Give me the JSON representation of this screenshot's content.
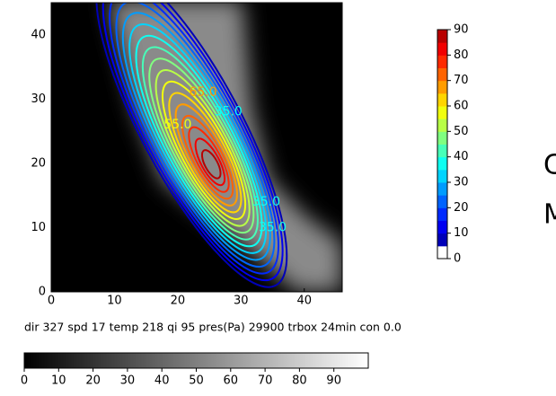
{
  "chart_data": {
    "type": "contour",
    "xlim": [
      0,
      46
    ],
    "ylim": [
      0,
      45
    ],
    "xticks": [
      0,
      10,
      20,
      30,
      40
    ],
    "yticks": [
      0,
      10,
      20,
      30,
      40
    ],
    "contour_levels": [
      5,
      10,
      15,
      20,
      25,
      30,
      35,
      40,
      45,
      50,
      55,
      60,
      65,
      70,
      75,
      80,
      85
    ],
    "contour_labels": [
      "65.0",
      "55.0",
      "35.0",
      "35.0",
      "35.0"
    ],
    "colorbar": {
      "lim": [
        0,
        90
      ],
      "ticks": [
        0,
        10,
        20,
        30,
        40,
        50,
        60,
        70,
        80,
        90
      ]
    },
    "gray_colorbar": {
      "lim": [
        0,
        100
      ],
      "ticks": [
        0,
        10,
        20,
        30,
        40,
        50,
        60,
        70,
        80,
        90
      ]
    },
    "caption": "dir  327 spd    17 temp 218 qi  95 pres(Pa)   29900 trbox 24min con 0.0",
    "side_text": [
      "C",
      "M"
    ]
  }
}
